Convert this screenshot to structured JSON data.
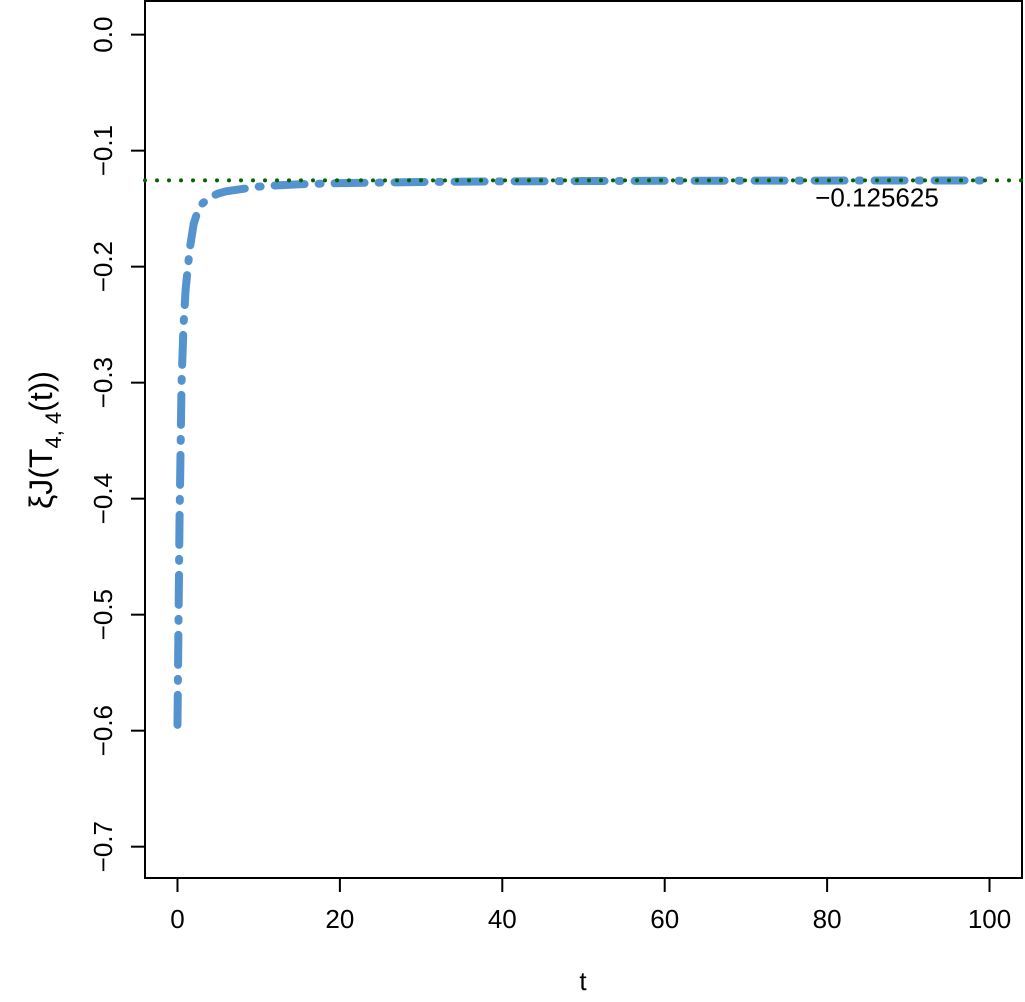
{
  "chart_data": {
    "type": "line",
    "xlabel": "t",
    "ylabel": {
      "main": "ξJ(T",
      "sub": "4, 4",
      "tail": "(t))"
    },
    "x": [
      0,
      0.25,
      0.5,
      0.75,
      1,
      1.5,
      2,
      2.5,
      3,
      4,
      5,
      6,
      8,
      10,
      12,
      15,
      20,
      25,
      30,
      40,
      50,
      60,
      70,
      80,
      90,
      100
    ],
    "series": [
      {
        "color": "#5593cf",
        "values": [
          -0.595,
          -0.42,
          -0.3,
          -0.25,
          -0.22,
          -0.185,
          -0.163,
          -0.152,
          -0.146,
          -0.14,
          -0.137,
          -0.135,
          -0.133,
          -0.131,
          -0.13,
          -0.129,
          -0.128,
          -0.1275,
          -0.127,
          -0.1265,
          -0.1262,
          -0.126,
          -0.1259,
          -0.1258,
          -0.1257,
          -0.1257
        ]
      }
    ],
    "hline": {
      "value": -0.125625,
      "label": "−0.125625",
      "color": "#006400"
    },
    "xlim": [
      -4,
      104
    ],
    "ylim": [
      -0.727,
      0.029
    ],
    "xticks": [
      0,
      20,
      40,
      60,
      80,
      100
    ],
    "yticks": [
      {
        "value": 0,
        "label": "0.0"
      },
      {
        "value": -0.1,
        "label": "−0.1"
      },
      {
        "value": -0.2,
        "label": "−0.2"
      },
      {
        "value": -0.3,
        "label": "−0.3"
      },
      {
        "value": -0.4,
        "label": "−0.4"
      },
      {
        "value": -0.5,
        "label": "−0.5"
      },
      {
        "value": -0.6,
        "label": "−0.6"
      },
      {
        "value": -0.7,
        "label": "−0.7"
      }
    ]
  }
}
